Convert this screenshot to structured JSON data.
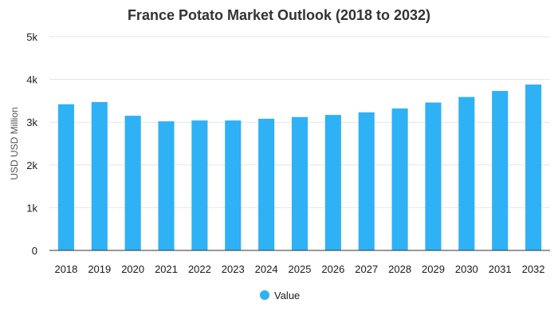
{
  "chart_data": {
    "type": "bar",
    "title": "France Potato Market Outlook (2018 to 2032)",
    "xlabel": "",
    "ylabel": "USD USD Million",
    "categories": [
      "2018",
      "2019",
      "2020",
      "2021",
      "2022",
      "2023",
      "2024",
      "2025",
      "2026",
      "2027",
      "2028",
      "2029",
      "2030",
      "2031",
      "2032"
    ],
    "series": [
      {
        "name": "Value",
        "color": "#2fb1f5",
        "values": [
          3420,
          3470,
          3150,
          3020,
          3040,
          3040,
          3080,
          3120,
          3170,
          3230,
          3320,
          3460,
          3590,
          3730,
          3880
        ]
      }
    ],
    "ylim": [
      0,
      5000
    ],
    "yticks": [
      0,
      1000,
      2000,
      3000,
      4000,
      5000
    ],
    "ytick_labels": [
      "0",
      "1k",
      "2k",
      "3k",
      "4k",
      "5k"
    ],
    "grid": true,
    "legend_position": "bottom-center"
  }
}
